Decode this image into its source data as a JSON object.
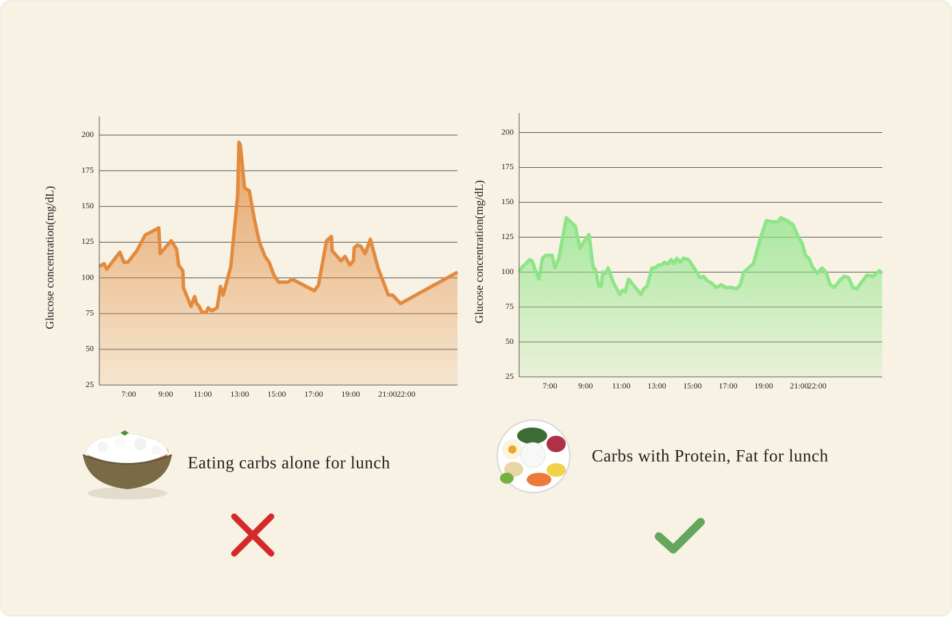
{
  "chart_data": [
    {
      "type": "area",
      "y_label": "Glucose concentration(mg/dL)",
      "caption": "Eating carbs alone for lunch",
      "color": "#e28a3e",
      "grid": true,
      "xlim": [
        5.41,
        24.78
      ],
      "ylim": [
        25,
        213
      ],
      "xticks": [
        {
          "value": 7,
          "label": "7:00"
        },
        {
          "value": 9,
          "label": "9:00"
        },
        {
          "value": 11,
          "label": "11:00"
        },
        {
          "value": 13,
          "label": "13:00"
        },
        {
          "value": 15,
          "label": "15:00"
        },
        {
          "value": 17,
          "label": "17:00"
        },
        {
          "value": 19,
          "label": "19:00"
        },
        {
          "value": 21,
          "label": "21:00"
        },
        {
          "value": 22,
          "label": "22:00"
        }
      ],
      "yticks": [
        25,
        50,
        75,
        100,
        125,
        150,
        175,
        200
      ],
      "x": [
        5.41,
        5.67,
        5.81,
        6.52,
        6.74,
        6.96,
        7.44,
        7.89,
        8.63,
        8.7,
        9.3,
        9.59,
        9.7,
        9.93,
        9.96,
        10.37,
        10.56,
        10.67,
        10.81,
        10.96,
        11.19,
        11.3,
        11.48,
        11.78,
        11.96,
        12.11,
        12.52,
        12.89,
        12.96,
        13.04,
        13.26,
        13.52,
        13.81,
        14.07,
        14.37,
        14.59,
        14.85,
        15.11,
        15.59,
        15.85,
        17.04,
        17.26,
        17.7,
        17.96,
        18.0,
        18.48,
        18.7,
        18.96,
        19.15,
        19.19,
        19.37,
        19.56,
        19.78,
        20.07,
        20.48,
        21.04,
        21.26,
        21.7,
        24.78
      ],
      "values": [
        108,
        110,
        106,
        118,
        111,
        111,
        119,
        130,
        135,
        117,
        126,
        120,
        109,
        105,
        93,
        80,
        87,
        82,
        80,
        76,
        76,
        79,
        77,
        79,
        94,
        88,
        108,
        158,
        195,
        193,
        163,
        161,
        140,
        125,
        115,
        111,
        102,
        97,
        97,
        99,
        91,
        95,
        126,
        129,
        119,
        112,
        115,
        109,
        112,
        121,
        123,
        122,
        117,
        127,
        107,
        88,
        88,
        82,
        104
      ]
    },
    {
      "type": "area",
      "y_label": "Glucose concentration(mg/dL)",
      "caption": "Carbs with Protein, Fat for lunch",
      "color": "#8ee588",
      "grid": true,
      "xlim": [
        5.27,
        25.65
      ],
      "ylim": [
        25,
        214
      ],
      "xticks": [
        {
          "value": 7,
          "label": "7:00"
        },
        {
          "value": 9,
          "label": "9:00"
        },
        {
          "value": 11,
          "label": "11:00"
        },
        {
          "value": 13,
          "label": "13:00"
        },
        {
          "value": 15,
          "label": "15:00"
        },
        {
          "value": 17,
          "label": "17:00"
        },
        {
          "value": 19,
          "label": "19:00"
        },
        {
          "value": 21,
          "label": "21:00"
        },
        {
          "value": 22,
          "label": "22:00"
        }
      ],
      "yticks": [
        25,
        50,
        75,
        100,
        125,
        150,
        175,
        200
      ],
      "x": [
        5.27,
        5.46,
        5.65,
        5.85,
        6.0,
        6.19,
        6.38,
        6.58,
        6.77,
        7.12,
        7.27,
        7.5,
        7.92,
        8.42,
        8.69,
        8.92,
        9.19,
        9.42,
        9.58,
        9.73,
        9.88,
        9.96,
        10.12,
        10.27,
        10.54,
        10.92,
        11.08,
        11.23,
        11.42,
        11.73,
        12.12,
        12.27,
        12.46,
        12.73,
        12.92,
        13.08,
        13.27,
        13.42,
        13.62,
        13.81,
        13.96,
        14.12,
        14.31,
        14.5,
        14.77,
        15.04,
        15.42,
        15.62,
        15.81,
        16.08,
        16.35,
        16.62,
        16.85,
        17.19,
        17.46,
        17.69,
        17.88,
        18.23,
        18.42,
        18.81,
        19.15,
        19.5,
        19.81,
        19.96,
        20.31,
        20.65,
        20.92,
        21.15,
        21.35,
        21.54,
        21.73,
        22.0,
        22.27,
        22.5,
        22.73,
        22.96,
        23.27,
        23.54,
        23.77,
        24.0,
        24.23,
        24.5,
        24.81,
        25.12,
        25.31,
        25.5,
        25.65
      ],
      "values": [
        100,
        104,
        106,
        109,
        108,
        101,
        95,
        110,
        112,
        112,
        103,
        110,
        139,
        133,
        117,
        122,
        127,
        104,
        101,
        90,
        90,
        100,
        99,
        103,
        93,
        84,
        87,
        86,
        95,
        90,
        84,
        88,
        90,
        103,
        103,
        105,
        105,
        107,
        106,
        109,
        106,
        110,
        107,
        110,
        109,
        104,
        96,
        97,
        94,
        92,
        89,
        91,
        89,
        89,
        88,
        91,
        100,
        104,
        106,
        124,
        137,
        136,
        136,
        139,
        137,
        134,
        126,
        121,
        112,
        110,
        104,
        99,
        103,
        100,
        91,
        89,
        94,
        97,
        96,
        89,
        88,
        93,
        98,
        97,
        99,
        101,
        99
      ]
    }
  ]
}
